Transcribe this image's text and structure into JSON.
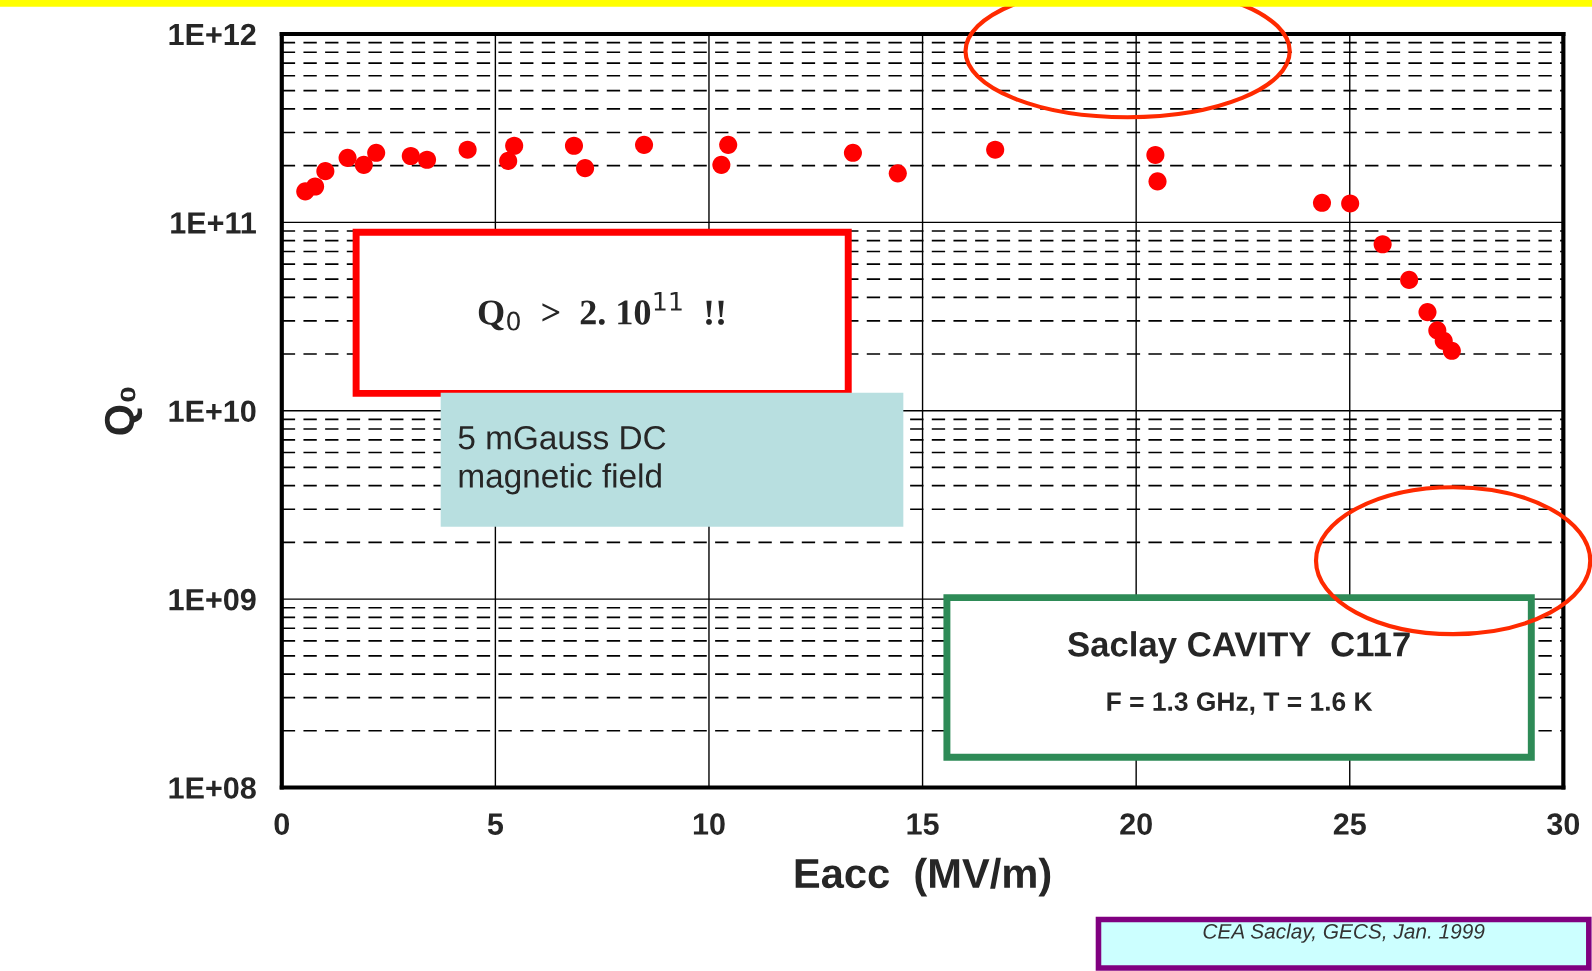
{
  "chart_data": {
    "type": "scatter",
    "xlabel": "Eacc  (MV/m)",
    "ylabel": "Q₀",
    "log": "y",
    "grid": true,
    "marker": "circle",
    "xlim": [
      0,
      30
    ],
    "xticks": [
      0,
      5,
      10,
      15,
      20,
      25,
      30
    ],
    "ylim": [
      100000000.0,
      1000000000000.0
    ],
    "yticks": [
      {
        "value": 100000000.0,
        "label": "1E+08"
      },
      {
        "value": 1000000000.0,
        "label": "1E+09"
      },
      {
        "value": 10000000000.0,
        "label": "1E+10"
      },
      {
        "value": 100000000000.0,
        "label": "1E+11"
      },
      {
        "value": 1000000000000.0,
        "label": "1E+12"
      }
    ],
    "series": [
      {
        "color": "#ff0000",
        "x": [
          0.55,
          0.78,
          1.02,
          1.54,
          1.92,
          2.21,
          3.02,
          3.4,
          4.35,
          5.3,
          5.44,
          6.84,
          7.1,
          8.48,
          10.29,
          10.45,
          13.37,
          14.42,
          16.7,
          20.45,
          20.5,
          24.35,
          25.01,
          25.77,
          26.39,
          26.82,
          27.05,
          27.2,
          27.39
        ],
        "values": [
          146000000000.0,
          155000000000.0,
          187000000000.0,
          220000000000.0,
          202000000000.0,
          234000000000.0,
          225000000000.0,
          215000000000.0,
          243000000000.0,
          212000000000.0,
          255000000000.0,
          255000000000.0,
          194000000000.0,
          258000000000.0,
          202000000000.0,
          258000000000.0,
          234000000000.0,
          182000000000.0,
          243000000000.0,
          228000000000.0,
          165000000000.0,
          127000000000.0,
          126000000000.0,
          76500000000.0,
          49500000000.0,
          33400000000.0,
          26700000000.0,
          23500000000.0,
          20800000000.0
        ]
      }
    ],
    "annotations": [
      "Q$_{0}$  >  2. 10$^{11}$  !!",
      "5 mGauss DC\nmagnetic field",
      "Saclay CAVITY  C117",
      "F = 1.3 GHz, T = 1.6 K",
      "CEA Saclay, GECS, Jan. 1999"
    ]
  }
}
